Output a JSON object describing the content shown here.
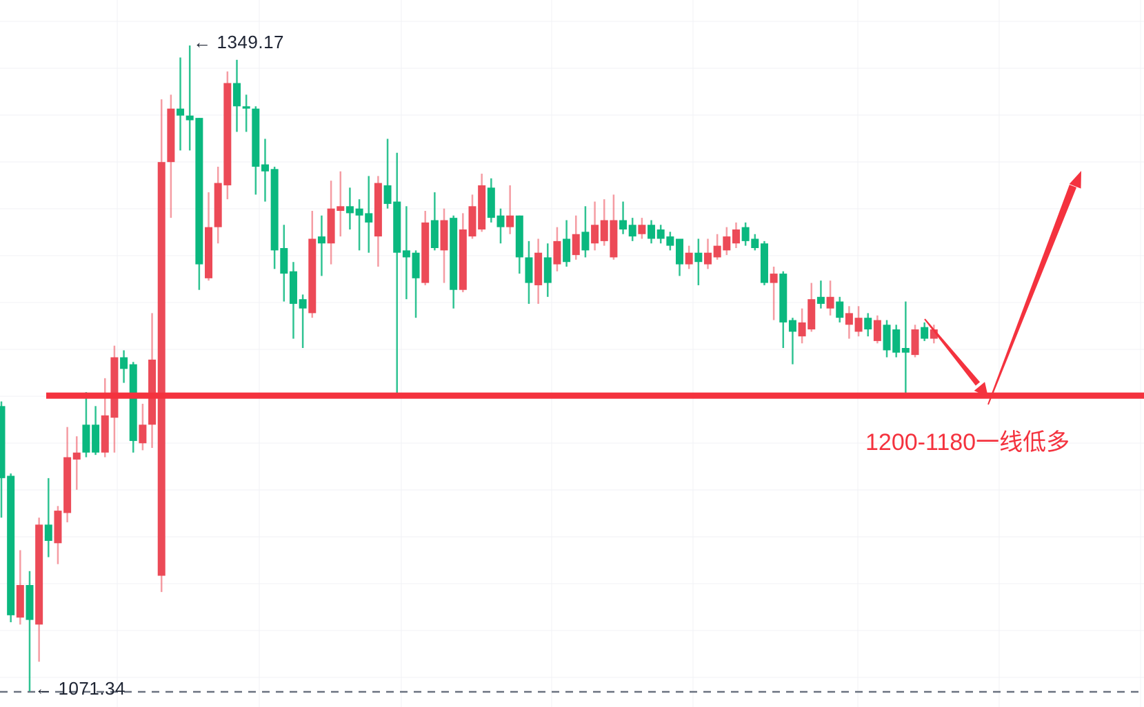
{
  "chart": {
    "high_callout": {
      "arrow": "←",
      "value": "1349.17"
    },
    "low_callout": {
      "arrow": "←",
      "value": "1071.34"
    },
    "annotation": {
      "text": "1200-1180一线低多"
    },
    "colors": {
      "up_candle": "#0ab87f",
      "down_candle": "#ec4a57",
      "up_wick": "rgba(10,184,127,0.85)",
      "down_wick": "rgba(236,74,87,0.55)",
      "drawing_red": "#f4323e",
      "label_dark": "#1e2433",
      "dashed_gray": "#6a7280",
      "grid": "#f0f2f5",
      "background": "#ffffff"
    }
  },
  "chart_data": {
    "type": "candlestick",
    "description": "Gold price candlestick chart with red support line drawing, V-shaped red arrow (down then up) and Chinese note meaning 'go long near the 1200-1180 line'",
    "high_marker_price": 1349.17,
    "low_marker_price": 1071.34,
    "support_line_price": 1198.5,
    "annotation_text": "1200-1180一线低多",
    "ylim": [
      1060,
      1360
    ],
    "y_axis": {
      "price_high": 1349.17,
      "y_high": 66,
      "price_low": 1071.34,
      "y_low": 1003
    },
    "x_start": 2,
    "x_step": 13.66,
    "drawings": [
      "support-line",
      "down-arrow",
      "up-arrow",
      "low-dashed-line"
    ],
    "candles_format": [
      "open",
      "high",
      "low",
      "close"
    ],
    "candles": [
      [
        1163,
        1196,
        1146,
        1194
      ],
      [
        1104,
        1165,
        1101,
        1164
      ],
      [
        1117,
        1132,
        1100,
        1103
      ],
      [
        1102,
        1123,
        1071.34,
        1117
      ],
      [
        1143,
        1146,
        1084,
        1100
      ],
      [
        1136,
        1163,
        1129,
        1143
      ],
      [
        1149,
        1151,
        1126,
        1135
      ],
      [
        1172,
        1185,
        1144,
        1148
      ],
      [
        1174,
        1181,
        1158,
        1171
      ],
      [
        1174,
        1200,
        1172,
        1186
      ],
      [
        1174,
        1194,
        1173,
        1186
      ],
      [
        1190,
        1206,
        1172,
        1174
      ],
      [
        1215,
        1220,
        1174,
        1189
      ],
      [
        1210,
        1218,
        1204,
        1215
      ],
      [
        1179,
        1213,
        1174,
        1212
      ],
      [
        1186,
        1195,
        1175,
        1178
      ],
      [
        1214,
        1234,
        1176,
        1186
      ],
      [
        1299,
        1326,
        1114,
        1121
      ],
      [
        1322,
        1328,
        1275,
        1299
      ],
      [
        1319,
        1344,
        1304,
        1322
      ],
      [
        1317,
        1349.17,
        1304,
        1319
      ],
      [
        1255,
        1318,
        1244,
        1318
      ],
      [
        1271,
        1286,
        1248,
        1249
      ],
      [
        1290,
        1297,
        1264,
        1271
      ],
      [
        1333,
        1338,
        1283,
        1289
      ],
      [
        1323,
        1343,
        1312,
        1333
      ],
      [
        1322,
        1328,
        1312,
        1323
      ],
      [
        1297,
        1323,
        1285,
        1322
      ],
      [
        1295,
        1309,
        1282,
        1298
      ],
      [
        1261,
        1297,
        1253,
        1296
      ],
      [
        1251,
        1272,
        1239,
        1262
      ],
      [
        1238,
        1256,
        1223,
        1252
      ],
      [
        1236,
        1242,
        1219,
        1240
      ],
      [
        1266,
        1278,
        1232,
        1234
      ],
      [
        1264,
        1276,
        1250,
        1267
      ],
      [
        1279,
        1291,
        1255,
        1264
      ],
      [
        1280,
        1295,
        1267,
        1278
      ],
      [
        1277,
        1288,
        1270,
        1280
      ],
      [
        1276,
        1283,
        1261,
        1279
      ],
      [
        1273,
        1293,
        1260,
        1277
      ],
      [
        1290,
        1293,
        1254,
        1267
      ],
      [
        1281,
        1309,
        1279,
        1289
      ],
      [
        1260,
        1303,
        1199,
        1282
      ],
      [
        1258,
        1280,
        1240,
        1261
      ],
      [
        1249,
        1261,
        1232,
        1260
      ],
      [
        1273,
        1278,
        1246,
        1247
      ],
      [
        1262,
        1286,
        1261,
        1274
      ],
      [
        1274,
        1279,
        1247,
        1261
      ],
      [
        1244,
        1276,
        1236,
        1275
      ],
      [
        1270,
        1277,
        1243,
        1244
      ],
      [
        1280,
        1285,
        1266,
        1267
      ],
      [
        1289,
        1294,
        1269,
        1270
      ],
      [
        1275,
        1292,
        1273,
        1288
      ],
      [
        1271,
        1279,
        1264,
        1276
      ],
      [
        1276,
        1289,
        1268,
        1271
      ],
      [
        1258,
        1276,
        1251,
        1276
      ],
      [
        1247,
        1265,
        1238,
        1258
      ],
      [
        1260,
        1266,
        1238,
        1246
      ],
      [
        1247,
        1264,
        1241,
        1258
      ],
      [
        1265,
        1271,
        1252,
        1255
      ],
      [
        1256,
        1274,
        1254,
        1266
      ],
      [
        1268,
        1276,
        1257,
        1259
      ],
      [
        1261,
        1280,
        1258,
        1269
      ],
      [
        1272,
        1282,
        1261,
        1264
      ],
      [
        1274,
        1283,
        1263,
        1265
      ],
      [
        1274,
        1285,
        1257,
        1258
      ],
      [
        1270,
        1282,
        1268,
        1274
      ],
      [
        1267,
        1275,
        1265,
        1272
      ],
      [
        1272,
        1275,
        1266,
        1268
      ],
      [
        1266,
        1274,
        1264,
        1272
      ],
      [
        1266,
        1272,
        1264,
        1270
      ],
      [
        1263,
        1269,
        1261,
        1267
      ],
      [
        1255,
        1266,
        1250,
        1266
      ],
      [
        1260,
        1263,
        1253,
        1255
      ],
      [
        1256,
        1266,
        1246,
        1260
      ],
      [
        1260,
        1266,
        1253,
        1255
      ],
      [
        1263,
        1268,
        1257,
        1258
      ],
      [
        1267,
        1271,
        1259,
        1261
      ],
      [
        1270,
        1273,
        1262,
        1264
      ],
      [
        1265,
        1273,
        1263,
        1271
      ],
      [
        1262,
        1268,
        1261,
        1266
      ],
      [
        1247,
        1265,
        1246,
        1264
      ],
      [
        1251,
        1254,
        1231,
        1247
      ],
      [
        1230,
        1252,
        1219,
        1251
      ],
      [
        1226,
        1232,
        1212,
        1231
      ],
      [
        1230,
        1236,
        1221,
        1224
      ],
      [
        1240,
        1247,
        1226,
        1227
      ],
      [
        1238,
        1248,
        1236,
        1241
      ],
      [
        1241,
        1248,
        1233,
        1236
      ],
      [
        1232,
        1241,
        1230,
        1239
      ],
      [
        1234,
        1237,
        1223,
        1229
      ],
      [
        1232,
        1237,
        1224,
        1226
      ],
      [
        1227,
        1234,
        1224,
        1232
      ],
      [
        1231,
        1233,
        1221,
        1222
      ],
      [
        1218,
        1231,
        1215,
        1229
      ],
      [
        1217,
        1229,
        1215,
        1227
      ],
      [
        1217,
        1239,
        1199,
        1219
      ],
      [
        1227,
        1229,
        1215,
        1216
      ],
      [
        1223,
        1230,
        1222,
        1228
      ],
      [
        1227,
        1229,
        1221,
        1223
      ]
    ]
  }
}
